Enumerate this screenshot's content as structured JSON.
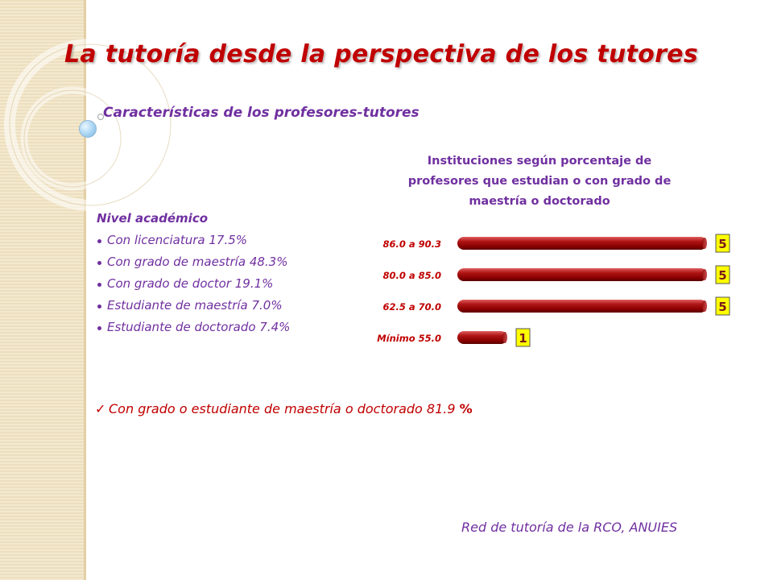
{
  "slide": {
    "title": "La tutoría desde la perspectiva de los tutores",
    "subtitle": "Características de los profesores-tutores",
    "source": "Red de tutoría de la RCO, ANUIES",
    "colors": {
      "title": "#c00000",
      "text_purple": "#7030a0",
      "bar": "#9b0a0a",
      "label_box": "#ffff00",
      "strip": "#f1e3c3"
    }
  },
  "academic_level": {
    "heading": "Nivel académico",
    "items": [
      "Con licenciatura  17.5%",
      "Con grado de maestría  48.3%",
      "Con grado de doctor   19.1%",
      "Estudiante de maestría  7.0%",
      "Estudiante de doctorado  7.4%"
    ]
  },
  "summary": {
    "text": "Con grado o estudiante de maestría o doctorado 81.9",
    "percent_sign": "%"
  },
  "chart_data": {
    "type": "bar",
    "orientation": "horizontal",
    "title": "Instituciones según porcentaje de profesores  que estudian o con grado de maestría o doctorado",
    "title_lines": [
      "Instituciones según porcentaje de",
      "profesores  que estudian o con grado de",
      "maestría o doctorado"
    ],
    "categories": [
      "86.0  a  90.3",
      "80.0  a  85.0",
      "62.5  a  70.0",
      "Mínimo 55.0"
    ],
    "values": [
      5,
      5,
      5,
      1
    ],
    "xlim": [
      0,
      5
    ],
    "xlabel": "",
    "ylabel": "",
    "data_labels": true
  }
}
